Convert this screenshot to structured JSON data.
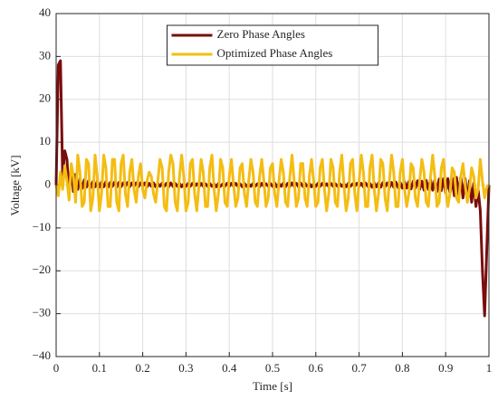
{
  "chart_data": {
    "type": "line",
    "xlabel": "Time [s]",
    "ylabel": "Voltage [kV]",
    "xlim": [
      0,
      1
    ],
    "ylim": [
      -40,
      40
    ],
    "xticks": [
      0,
      0.1,
      0.2,
      0.3,
      0.4,
      0.5,
      0.6,
      0.7,
      0.8,
      0.9,
      1
    ],
    "yticks": [
      {
        "value": -40,
        "label": "−40"
      },
      {
        "value": -30,
        "label": "−30"
      },
      {
        "value": -20,
        "label": "−20"
      },
      {
        "value": -10,
        "label": "−10"
      },
      0,
      10,
      20,
      30,
      40
    ],
    "grid": true,
    "legend": "upper center",
    "x": [
      0,
      0.005,
      0.01,
      0.015,
      0.02,
      0.025,
      0.03,
      0.035,
      0.04,
      0.045,
      0.05,
      0.055,
      0.06,
      0.065,
      0.07,
      0.075,
      0.08,
      0.085,
      0.09,
      0.095,
      0.1,
      0.105,
      0.11,
      0.115,
      0.12,
      0.125,
      0.13,
      0.135,
      0.14,
      0.145,
      0.15,
      0.155,
      0.16,
      0.165,
      0.17,
      0.175,
      0.18,
      0.185,
      0.19,
      0.195,
      0.2,
      0.205,
      0.21,
      0.215,
      0.22,
      0.225,
      0.23,
      0.235,
      0.24,
      0.245,
      0.25,
      0.255,
      0.26,
      0.265,
      0.27,
      0.275,
      0.28,
      0.285,
      0.29,
      0.295,
      0.3,
      0.305,
      0.31,
      0.315,
      0.32,
      0.325,
      0.33,
      0.335,
      0.34,
      0.345,
      0.35,
      0.355,
      0.36,
      0.365,
      0.37,
      0.375,
      0.38,
      0.385,
      0.39,
      0.395,
      0.4,
      0.405,
      0.41,
      0.415,
      0.42,
      0.425,
      0.43,
      0.435,
      0.44,
      0.445,
      0.45,
      0.455,
      0.46,
      0.465,
      0.47,
      0.475,
      0.48,
      0.485,
      0.49,
      0.495,
      0.5,
      0.505,
      0.51,
      0.515,
      0.52,
      0.525,
      0.53,
      0.535,
      0.54,
      0.545,
      0.55,
      0.555,
      0.56,
      0.565,
      0.57,
      0.575,
      0.58,
      0.585,
      0.59,
      0.595,
      0.6,
      0.605,
      0.61,
      0.615,
      0.62,
      0.625,
      0.63,
      0.635,
      0.64,
      0.645,
      0.65,
      0.655,
      0.66,
      0.665,
      0.67,
      0.675,
      0.68,
      0.685,
      0.69,
      0.695,
      0.7,
      0.705,
      0.71,
      0.715,
      0.72,
      0.725,
      0.73,
      0.735,
      0.74,
      0.745,
      0.75,
      0.755,
      0.76,
      0.765,
      0.77,
      0.775,
      0.78,
      0.785,
      0.79,
      0.795,
      0.8,
      0.805,
      0.81,
      0.815,
      0.82,
      0.825,
      0.83,
      0.835,
      0.84,
      0.845,
      0.85,
      0.855,
      0.86,
      0.865,
      0.87,
      0.875,
      0.88,
      0.885,
      0.89,
      0.895,
      0.9,
      0.905,
      0.91,
      0.915,
      0.92,
      0.925,
      0.93,
      0.935,
      0.94,
      0.945,
      0.95,
      0.955,
      0.96,
      0.965,
      0.97,
      0.975,
      0.98,
      0.985,
      0.99,
      0.995,
      1
    ],
    "series": [
      {
        "name": "Zero Phase Angles",
        "color": "#7b0c0c",
        "values": [
          0,
          28,
          29,
          2,
          8,
          6,
          -2,
          4,
          -1.5,
          2.5,
          -1,
          1.5,
          -0.8,
          1.2,
          -0.5,
          1,
          -0.6,
          0.8,
          -0.4,
          0.9,
          -0.5,
          0.7,
          -0.4,
          0.8,
          -0.5,
          0.6,
          -0.3,
          0.7,
          -0.5,
          0.6,
          -0.4,
          0.5,
          -0.3,
          0.6,
          -0.4,
          0.5,
          -0.3,
          0.5,
          -0.4,
          0.5,
          -0.3,
          0.5,
          -0.4,
          0.4,
          -0.3,
          0.5,
          -0.4,
          0.4,
          -0.3,
          0.5,
          -0.3,
          0.4,
          -0.4,
          0.5,
          -0.3,
          0.4,
          -0.3,
          0.4,
          -0.4,
          0.3,
          -0.3,
          0.4,
          -0.3,
          0.4,
          -0.3,
          0.3,
          -0.4,
          0.4,
          -0.3,
          0.3,
          -0.3,
          0.4,
          -0.3,
          0.3,
          -0.4,
          0.4,
          -0.3,
          0.3,
          -0.3,
          0.4,
          -0.3,
          0.4,
          -0.3,
          0.4,
          -0.3,
          0.3,
          -0.4,
          0.4,
          -0.3,
          0.3,
          -0.3,
          0.4,
          -0.3,
          0.3,
          -0.4,
          0.4,
          -0.3,
          0.3,
          -0.3,
          0.4,
          -0.3,
          0.5,
          -0.4,
          0.4,
          -0.3,
          0.5,
          -0.4,
          0.4,
          -0.3,
          0.5,
          -0.3,
          0.4,
          -0.4,
          0.5,
          -0.3,
          0.4,
          -0.3,
          0.4,
          -0.4,
          0.3,
          -0.3,
          0.4,
          -0.3,
          0.4,
          -0.3,
          0.3,
          -0.4,
          0.4,
          -0.3,
          0.3,
          -0.3,
          0.4,
          -0.3,
          0.3,
          -0.4,
          0.4,
          -0.3,
          0.3,
          -0.3,
          0.4,
          -0.3,
          0.4,
          -0.4,
          0.5,
          -0.3,
          0.4,
          -0.5,
          0.5,
          -0.4,
          0.5,
          -0.5,
          0.6,
          -0.4,
          0.5,
          -0.6,
          0.6,
          -0.5,
          0.7,
          -0.6,
          0.6,
          -0.7,
          0.8,
          -0.7,
          0.8,
          -0.9,
          0.9,
          -0.8,
          1,
          -1,
          0.9,
          -1.2,
          1.1,
          -1,
          1.3,
          -1.2,
          1.2,
          -1.5,
          1.4,
          -1.3,
          1.5,
          -1.8,
          1.5,
          -2,
          1.6,
          -2.5,
          1.8,
          -2.2,
          2,
          -3,
          1.5,
          -3.5,
          1,
          -4,
          0.5,
          -5,
          -1,
          -6,
          -20,
          -30.5,
          -15,
          0
        ]
      },
      {
        "name": "Optimized Phase Angles",
        "color": "#f4bd12",
        "values": [
          0,
          -2.5,
          3,
          -1,
          4.5,
          1,
          -3.5,
          5,
          2,
          -4,
          7,
          3,
          -5,
          -4,
          6,
          5,
          -6,
          -3,
          7,
          2,
          -6,
          -2,
          7,
          4,
          -5,
          -5,
          6,
          6,
          -4,
          -6,
          5,
          7,
          -2,
          -5,
          3,
          6,
          -1,
          -4,
          2,
          5,
          -1,
          -3,
          1,
          3,
          2,
          -2,
          -4,
          1,
          6,
          4,
          -5,
          -6,
          3,
          7,
          5,
          -4,
          -6,
          2,
          7,
          2,
          -6,
          -4,
          5,
          6,
          -2,
          -6,
          0,
          6,
          3,
          -5,
          -5,
          4,
          7,
          -1,
          -6,
          -2,
          6,
          4,
          -4,
          -5,
          2,
          6,
          0,
          -5,
          -3,
          4,
          5,
          -2,
          -5,
          1,
          6,
          3,
          -4,
          -5,
          2,
          6,
          1,
          -5,
          -3,
          4,
          5,
          -2,
          -5,
          1,
          6,
          3,
          -4,
          -5,
          2,
          7,
          1,
          -5,
          -3,
          5,
          5,
          -3,
          -5,
          2,
          6,
          1,
          -5,
          -4,
          4,
          6,
          -1,
          -6,
          -2,
          6,
          4,
          -4,
          -5,
          3,
          7,
          0,
          -6,
          -3,
          5,
          6,
          -2,
          -6,
          1,
          7,
          3,
          -5,
          -5,
          4,
          7,
          -1,
          -6,
          -2,
          6,
          5,
          -3,
          -6,
          1,
          7,
          3,
          -5,
          -5,
          3,
          6,
          -1,
          -5,
          -2,
          5,
          4,
          -3,
          -5,
          1,
          6,
          3,
          -4,
          -5,
          2,
          7,
          2,
          -5,
          -4,
          4,
          6,
          -1,
          -5,
          -2,
          4,
          3,
          -3,
          -4,
          2,
          5,
          0,
          -4,
          -1,
          4,
          2,
          -3,
          -1,
          6,
          1,
          -3,
          -0.5,
          0
        ]
      }
    ]
  }
}
